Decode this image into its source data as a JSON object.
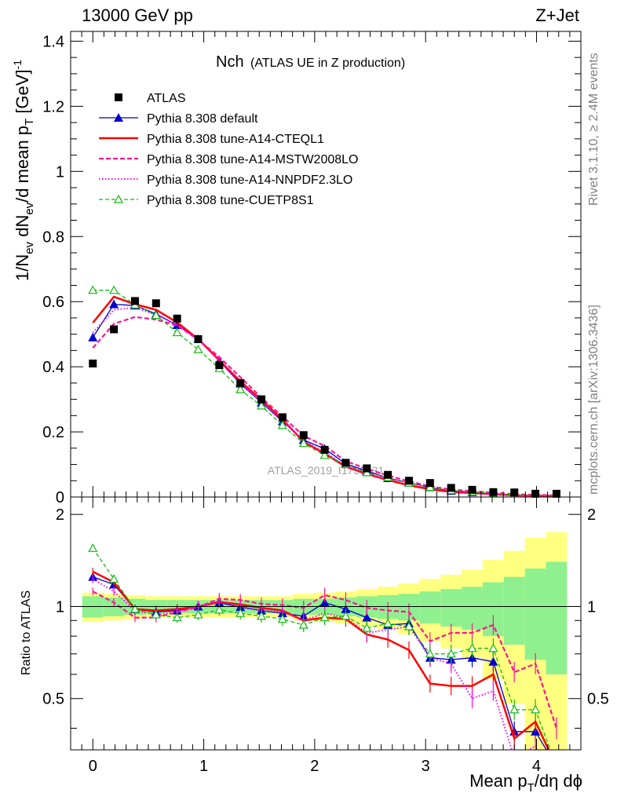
{
  "header": {
    "left": "13000 GeV pp",
    "right": "Z+Jet"
  },
  "side": {
    "rivet": "Rivet 3.1.10, ≥ 2.4M events",
    "mcplots": "mcplots.cern.ch [arXiv:1306.3436]"
  },
  "watermark": "ATLAS_2019_I1736531",
  "chart_data": {
    "type": "line",
    "title_main": "Nch",
    "title_sub": "(ATLAS UE in Z production)",
    "ylabel": {
      "a": "1/N",
      "a_sub": "ev",
      "b": " dN",
      "b_sub": "ev",
      "c": "/d mean p",
      "c_sub": "T",
      "d": " [GeV]",
      "d_sup": "-1"
    },
    "xlabel": {
      "a": "Mean p",
      "a_sub": "T",
      "b": "/dη dϕ"
    },
    "ratio_ylabel": "Ratio to ATLAS",
    "xlim": [
      -0.2,
      4.4
    ],
    "ylim": [
      0,
      1.43
    ],
    "ratio_ylim": [
      0.34,
      2.28
    ],
    "main_yticks": [
      "0",
      "0.2",
      "0.4",
      "0.6",
      "0.8",
      "1",
      "1.2",
      "1.4"
    ],
    "ratio_yticks": [
      "0.5",
      "1",
      "2"
    ],
    "xticks": [
      "0",
      "1",
      "2",
      "3",
      "4"
    ],
    "x": [
      0,
      0.19,
      0.38,
      0.57,
      0.76,
      0.95,
      1.14,
      1.33,
      1.52,
      1.71,
      1.9,
      2.09,
      2.28,
      2.47,
      2.66,
      2.85,
      3.04,
      3.23,
      3.42,
      3.61,
      3.8,
      3.99,
      4.18
    ],
    "data": {
      "name": "ATLAS",
      "values": [
        0.41,
        0.515,
        0.602,
        0.595,
        0.548,
        0.485,
        0.405,
        0.35,
        0.3,
        0.245,
        0.19,
        0.145,
        0.105,
        0.088,
        0.068,
        0.05,
        0.043,
        0.028,
        0.022,
        0.015,
        0.014,
        0.01,
        0.01
      ]
    },
    "bands": {
      "inner": [
        0.08,
        0.07,
        0.06,
        0.05,
        0.05,
        0.05,
        0.05,
        0.05,
        0.05,
        0.05,
        0.06,
        0.06,
        0.07,
        0.08,
        0.09,
        0.1,
        0.12,
        0.14,
        0.16,
        0.2,
        0.25,
        0.33,
        0.4
      ],
      "outer": [
        0.11,
        0.1,
        0.09,
        0.08,
        0.08,
        0.08,
        0.08,
        0.08,
        0.08,
        0.08,
        0.1,
        0.11,
        0.12,
        0.14,
        0.16,
        0.19,
        0.23,
        0.27,
        0.32,
        0.42,
        0.52,
        0.68,
        0.75
      ]
    },
    "series": [
      {
        "name": "Pythia 8.308 default",
        "color": "#0000cc",
        "dash": "",
        "width": 1.3,
        "marker": "triangle-filled",
        "values": [
          0.49,
          0.592,
          0.588,
          0.562,
          0.528,
          0.485,
          0.418,
          0.348,
          0.29,
          0.232,
          0.175,
          0.148,
          0.102,
          0.08,
          0.058,
          0.044,
          0.03,
          0.019,
          0.015,
          0.01,
          0.0055,
          0.0038,
          0.0038
        ],
        "ratio": [
          1.25,
          1.18,
          0.98,
          0.96,
          0.97,
          1.0,
          1.03,
          0.995,
          0.97,
          0.95,
          0.93,
          1.03,
          0.98,
          0.92,
          0.87,
          0.88,
          0.68,
          0.67,
          0.68,
          0.66,
          0.39,
          0.39,
          0.3
        ]
      },
      {
        "name": "Pythia 8.308 tune-A14-CTEQL1",
        "color": "#ff0000",
        "dash": "",
        "width": 2.5,
        "marker": "none",
        "values": [
          0.535,
          0.615,
          0.592,
          0.575,
          0.536,
          0.485,
          0.42,
          0.355,
          0.298,
          0.238,
          0.17,
          0.133,
          0.093,
          0.071,
          0.052,
          0.036,
          0.024,
          0.0155,
          0.012,
          0.009,
          0.005,
          0.004,
          0.003
        ],
        "ratio": [
          1.3,
          1.2,
          0.98,
          0.97,
          0.98,
          1.0,
          1.035,
          1.015,
          0.99,
          0.97,
          0.9,
          0.92,
          0.91,
          0.81,
          0.78,
          0.72,
          0.56,
          0.55,
          0.55,
          0.6,
          0.37,
          0.42,
          0.3
        ]
      },
      {
        "name": "Pythia 8.308 tune-A14-MSTW2008LO",
        "color": "#ff1493",
        "dash": "6,3",
        "width": 2.2,
        "marker": "none",
        "values": [
          0.458,
          0.532,
          0.553,
          0.545,
          0.527,
          0.483,
          0.43,
          0.368,
          0.305,
          0.247,
          0.188,
          0.157,
          0.11,
          0.087,
          0.066,
          0.048,
          0.033,
          0.023,
          0.018,
          0.0135,
          0.0085,
          0.0065,
          0.005
        ],
        "ratio": [
          1.12,
          1.03,
          0.92,
          0.92,
          0.96,
          0.995,
          1.06,
          1.05,
          1.02,
          1.01,
          0.99,
          1.09,
          1.05,
          0.99,
          0.97,
          0.96,
          0.77,
          0.82,
          0.82,
          0.87,
          0.61,
          0.65,
          0.4
        ]
      },
      {
        "name": "Pythia 8.308 tune-A14-NNPDF2.3LO",
        "color": "#ff00ff",
        "dash": "1.5,2.5",
        "width": 2.0,
        "marker": "none",
        "values": [
          0.505,
          0.575,
          0.582,
          0.56,
          0.528,
          0.485,
          0.422,
          0.352,
          0.29,
          0.235,
          0.172,
          0.138,
          0.096,
          0.072,
          0.057,
          0.043,
          0.029,
          0.018,
          0.011,
          0.008,
          0.0045,
          0.0035,
          0.002
        ],
        "ratio": [
          1.23,
          1.12,
          0.97,
          0.94,
          0.96,
          1.0,
          1.04,
          1.0,
          0.97,
          0.96,
          0.9,
          0.95,
          0.92,
          0.82,
          0.84,
          0.86,
          0.68,
          0.65,
          0.5,
          0.53,
          0.32,
          0.35,
          0.2
        ]
      },
      {
        "name": "Pythia 8.308 tune-CUETP8S1",
        "color": "#11bb11",
        "dash": "5,3",
        "width": 1.3,
        "marker": "triangle-open",
        "values": [
          0.635,
          0.635,
          0.59,
          0.558,
          0.505,
          0.453,
          0.395,
          0.33,
          0.28,
          0.22,
          0.165,
          0.128,
          0.1,
          0.075,
          0.06,
          0.043,
          0.03,
          0.02,
          0.016,
          0.011,
          0.0065,
          0.0045,
          0.0035
        ],
        "ratio": [
          1.55,
          1.23,
          0.98,
          0.94,
          0.92,
          0.94,
          0.975,
          0.95,
          0.93,
          0.91,
          0.87,
          0.92,
          0.93,
          0.85,
          0.88,
          0.86,
          0.7,
          0.7,
          0.73,
          0.73,
          0.46,
          0.46,
          0.3
        ]
      }
    ]
  }
}
